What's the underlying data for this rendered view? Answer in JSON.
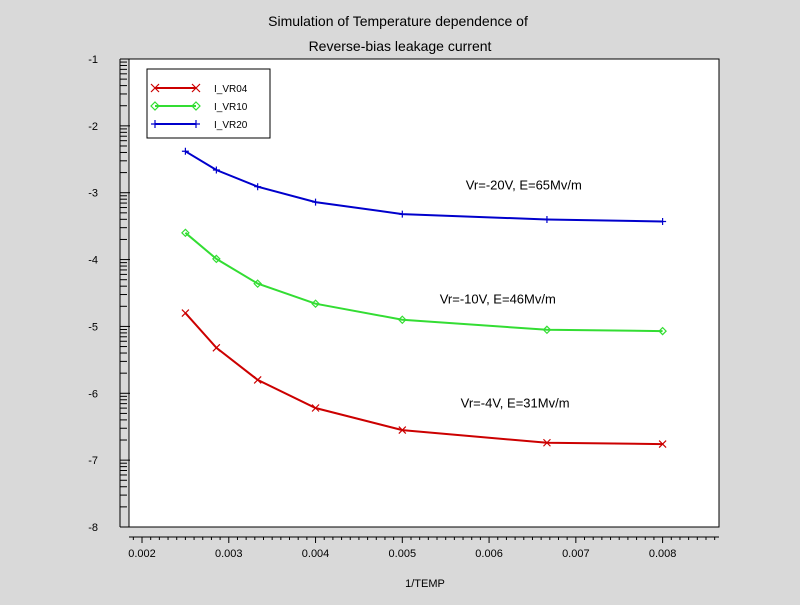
{
  "chart_data": {
    "type": "line",
    "title": "Simulation of Temperature dependence of",
    "subtitle": "Reverse-bias leakage current",
    "xlabel": "1/TEMP",
    "ylabel": "",
    "xlim": [
      0.00185,
      0.00865
    ],
    "ylim": [
      -8,
      -1
    ],
    "x_ticks": [
      0.002,
      0.003,
      0.004,
      0.005,
      0.006,
      0.007,
      0.008
    ],
    "x_tick_labels": [
      "0.002",
      "0.003",
      "0.004",
      "0.005",
      "0.006",
      "0.007",
      "0.008"
    ],
    "y_ticks": [
      -8,
      -7,
      -6,
      -5,
      -4,
      -3,
      -2,
      -1
    ],
    "y_tick_labels": [
      "-8",
      "-7",
      "-6",
      "-5",
      "-4",
      "-3",
      "-2",
      "-1"
    ],
    "grid": false,
    "legend_position": "top-left",
    "series": [
      {
        "name": "I_VR04",
        "color": "#cc0000",
        "marker": "x",
        "x": [
          0.0025,
          0.002857,
          0.003333,
          0.004,
          0.005,
          0.006667,
          0.008
        ],
        "y": [
          -4.8,
          -5.32,
          -5.8,
          -6.22,
          -6.55,
          -6.74,
          -6.76
        ]
      },
      {
        "name": "I_VR10",
        "color": "#33dd33",
        "marker": "diamond",
        "x": [
          0.0025,
          0.002857,
          0.003333,
          0.004,
          0.005,
          0.006667,
          0.008
        ],
        "y": [
          -3.6,
          -3.99,
          -4.36,
          -4.66,
          -4.9,
          -5.05,
          -5.07
        ]
      },
      {
        "name": "I_VR20",
        "color": "#0000cc",
        "marker": "plus",
        "x": [
          0.0025,
          0.002857,
          0.003333,
          0.004,
          0.005,
          0.006667,
          0.008
        ],
        "y": [
          -2.38,
          -2.66,
          -2.91,
          -3.14,
          -3.32,
          -3.4,
          -3.43
        ]
      }
    ],
    "annotations": [
      {
        "text": "Vr=-20V, E=65Mv/m",
        "x": 0.0064,
        "y": -2.88
      },
      {
        "text": "Vr=-10V, E=46Mv/m",
        "x": 0.0061,
        "y": -4.58
      },
      {
        "text": "Vr=-4V, E=31Mv/m",
        "x": 0.0063,
        "y": -6.14
      }
    ]
  }
}
